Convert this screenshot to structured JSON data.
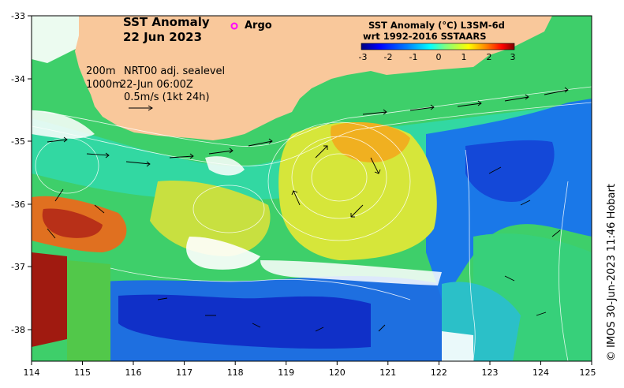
{
  "title_line1": "SST Anomaly",
  "title_line2": "22 Jun 2023",
  "argo_label": "Argo",
  "argo_color": "#ff00ff",
  "legend_200m": "200m",
  "legend_1000m": "1000m",
  "legend_sealevel": "NRT00 adj. sealevel",
  "legend_time": "22-Jun 06:00Z",
  "legend_speed": "0.5m/s (1kt 24h)",
  "colorbar_title1": "SST Anomaly (°C) L3SM-6d",
  "colorbar_title2": "wrt 1992-2016 SSTAARS",
  "colorbar_ticks": [
    "-3",
    "-2",
    "-1",
    "0",
    "1",
    "2",
    "3"
  ],
  "colorbar_colors": [
    "#00007f",
    "#0000ff",
    "#007fff",
    "#00ffff",
    "#7fff7f",
    "#ffff00",
    "#ff7f00",
    "#ff0000",
    "#7f0000"
  ],
  "lon_ticks": [
    "114",
    "115",
    "116",
    "117",
    "118",
    "119",
    "120",
    "121",
    "122",
    "123",
    "124",
    "125"
  ],
  "lat_ticks": [
    "-33",
    "-34",
    "-35",
    "-36",
    "-37",
    "-38"
  ],
  "credit": "© IMOS 30-Jun-2023 11:46 Hobart",
  "land_color": "#f9c89b"
}
